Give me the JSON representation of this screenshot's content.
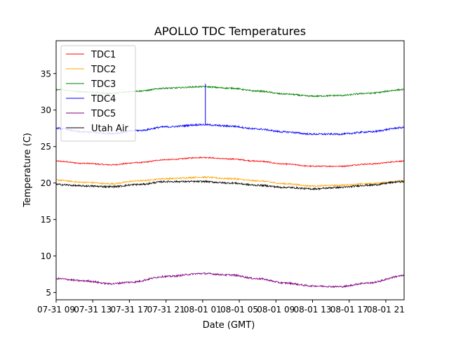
{
  "chart_data": {
    "type": "line",
    "title": "APOLLO TDC Temperatures",
    "xlabel": "Date (GMT)",
    "ylabel": "Temperature (C)",
    "xlim": [
      0,
      38
    ],
    "ylim": [
      4,
      39.5
    ],
    "x_ticks": [
      {
        "x": 0,
        "label": "07-31 09"
      },
      {
        "x": 4,
        "label": "07-31 13"
      },
      {
        "x": 8,
        "label": "07-31 17"
      },
      {
        "x": 12,
        "label": "07-31 21"
      },
      {
        "x": 16,
        "label": "08-01 01"
      },
      {
        "x": 20,
        "label": "08-01 05"
      },
      {
        "x": 24,
        "label": "08-01 09"
      },
      {
        "x": 28,
        "label": "08-01 13"
      },
      {
        "x": 32,
        "label": "08-01 17"
      },
      {
        "x": 36,
        "label": "08-01 21"
      }
    ],
    "y_ticks": [
      5,
      10,
      15,
      20,
      25,
      30,
      35
    ],
    "legend_position": "top-left",
    "x_units": "hours since 07-31 09:00 GMT",
    "series": [
      {
        "name": "TDC1",
        "color": "#ff0000",
        "noise": 0.08,
        "points": [
          [
            0,
            23.0
          ],
          [
            3,
            22.7
          ],
          [
            6,
            22.5
          ],
          [
            9,
            22.8
          ],
          [
            12,
            23.2
          ],
          [
            16,
            23.5
          ],
          [
            19,
            23.3
          ],
          [
            22,
            23.0
          ],
          [
            25,
            22.6
          ],
          [
            28,
            22.3
          ],
          [
            31,
            22.3
          ],
          [
            34,
            22.6
          ],
          [
            38,
            23.0
          ]
        ]
      },
      {
        "name": "TDC2",
        "color": "#ffa500",
        "noise": 0.1,
        "points": [
          [
            0,
            20.4
          ],
          [
            3,
            20.1
          ],
          [
            6,
            19.9
          ],
          [
            9,
            20.3
          ],
          [
            12,
            20.6
          ],
          [
            16,
            20.8
          ],
          [
            19,
            20.6
          ],
          [
            22,
            20.3
          ],
          [
            25,
            19.9
          ],
          [
            28,
            19.6
          ],
          [
            31,
            19.7
          ],
          [
            34,
            19.9
          ],
          [
            38,
            20.3
          ]
        ]
      },
      {
        "name": "TDC3",
        "color": "#008000",
        "noise": 0.1,
        "points": [
          [
            0,
            32.8
          ],
          [
            3,
            32.5
          ],
          [
            6,
            32.3
          ],
          [
            9,
            32.6
          ],
          [
            12,
            33.0
          ],
          [
            16,
            33.2
          ],
          [
            19,
            33.0
          ],
          [
            22,
            32.6
          ],
          [
            25,
            32.2
          ],
          [
            28,
            31.9
          ],
          [
            31,
            32.0
          ],
          [
            34,
            32.3
          ],
          [
            38,
            32.8
          ]
        ]
      },
      {
        "name": "TDC4",
        "color": "#0000ff",
        "noise": 0.12,
        "spike": {
          "x": 16.3,
          "y": 33.6
        },
        "points": [
          [
            0,
            27.5
          ],
          [
            3,
            27.0
          ],
          [
            6,
            26.8
          ],
          [
            9,
            27.2
          ],
          [
            12,
            27.7
          ],
          [
            16,
            28.0
          ],
          [
            19,
            27.8
          ],
          [
            22,
            27.4
          ],
          [
            25,
            27.0
          ],
          [
            28,
            26.7
          ],
          [
            31,
            26.7
          ],
          [
            34,
            27.0
          ],
          [
            38,
            27.6
          ]
        ]
      },
      {
        "name": "TDC5",
        "color": "#800080",
        "noise": 0.12,
        "points": [
          [
            0,
            6.9
          ],
          [
            3,
            6.6
          ],
          [
            6,
            6.2
          ],
          [
            8,
            6.4
          ],
          [
            12,
            7.2
          ],
          [
            16,
            7.6
          ],
          [
            19,
            7.4
          ],
          [
            22,
            6.9
          ],
          [
            25,
            6.3
          ],
          [
            28,
            5.9
          ],
          [
            31,
            5.8
          ],
          [
            34,
            6.3
          ],
          [
            38,
            7.3
          ]
        ]
      },
      {
        "name": "Utah Air",
        "color": "#000000",
        "noise": 0.12,
        "points": [
          [
            0,
            19.8
          ],
          [
            3,
            19.6
          ],
          [
            6,
            19.5
          ],
          [
            9,
            19.8
          ],
          [
            12,
            20.2
          ],
          [
            16,
            20.2
          ],
          [
            19,
            20.0
          ],
          [
            22,
            19.7
          ],
          [
            25,
            19.4
          ],
          [
            28,
            19.2
          ],
          [
            31,
            19.4
          ],
          [
            34,
            19.7
          ],
          [
            38,
            20.2
          ]
        ]
      }
    ]
  }
}
